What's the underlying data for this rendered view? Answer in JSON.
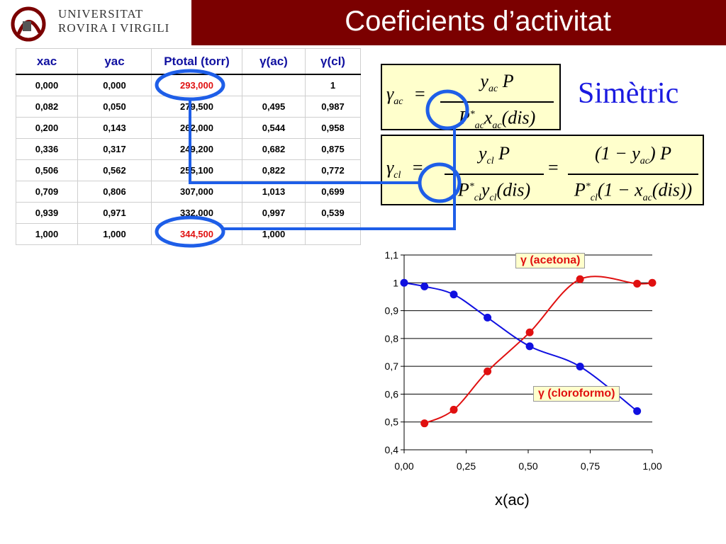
{
  "header": {
    "title": "Coeficients d’activitat",
    "university_line1": "UNIVERSITAT",
    "university_line2": "ROVIRA I VIRGILI"
  },
  "table": {
    "headers": [
      "xac",
      "yac",
      "Ptotal (torr)",
      "γ(ac)",
      "γ(cl)"
    ],
    "rows": [
      [
        "0,000",
        "0,000",
        "293,000",
        "",
        "1"
      ],
      [
        "0,082",
        "0,050",
        "279,500",
        "0,495",
        "0,987"
      ],
      [
        "0,200",
        "0,143",
        "262,000",
        "0,544",
        "0,958"
      ],
      [
        "0,336",
        "0,317",
        "249,200",
        "0,682",
        "0,875"
      ],
      [
        "0,506",
        "0,562",
        "255,100",
        "0,822",
        "0,772"
      ],
      [
        "0,709",
        "0,806",
        "307,000",
        "1,013",
        "0,699"
      ],
      [
        "0,939",
        "0,971",
        "332,000",
        "0,997",
        "0,539"
      ],
      [
        "1,000",
        "1,000",
        "344,500",
        "1,000",
        ""
      ]
    ],
    "highlighted_cells": [
      "0.2",
      "7.2"
    ]
  },
  "formulas": {
    "f1_lhs": "γ",
    "f1_lhs_sub": "ac",
    "f1_num": "y",
    "f1_num_sub": "ac",
    "f1_num_tail": " P",
    "f1_den": "P",
    "f1_den_sup": "*",
    "f1_den_sub": "ac",
    "f1_den_tail": "x",
    "f1_den_tail_sub": "ac",
    "f1_den_end": "(dis)",
    "f2_lhs": "γ",
    "f2_lhs_sub": "cl",
    "f2_num1": "y",
    "f2_num1_sub": "cl",
    "f2_num1_tail": " P",
    "f2_den1": "P",
    "f2_den1_sup": "*",
    "f2_den1_sub": "cl",
    "f2_den1_tail": "y",
    "f2_den1_tail_sub": "cl",
    "f2_den1_end": "(dis)",
    "f2_num2": "(1 − y",
    "f2_num2_sub": "ac",
    "f2_num2_tail": ") P",
    "f2_den2": "P",
    "f2_den2_sup": "*",
    "f2_den2_sub": "cl",
    "f2_den2_tail": "(1 − x",
    "f2_den2_tail_sub": "ac",
    "f2_den2_end": "(dis))",
    "equals": "=",
    "symmetric_label": "Simètric"
  },
  "chart_data": {
    "type": "scatter",
    "xlabel": "x(ac)",
    "ylabel": "",
    "xlim": [
      0,
      1
    ],
    "ylim": [
      0.4,
      1.1
    ],
    "x_ticks": [
      "0,00",
      "0,25",
      "0,50",
      "0,75",
      "1,00"
    ],
    "y_ticks": [
      "0,4",
      "0,5",
      "0,6",
      "0,7",
      "0,8",
      "0,9",
      "1",
      "1,1"
    ],
    "grid": "horizontal",
    "series": [
      {
        "name": "γ (acetona)",
        "color": "#e01010",
        "x": [
          0.082,
          0.2,
          0.336,
          0.506,
          0.709,
          0.939,
          1.0
        ],
        "y": [
          0.495,
          0.544,
          0.682,
          0.822,
          1.013,
          0.997,
          1.0
        ]
      },
      {
        "name": "γ (cloroformo)",
        "color": "#1010e0",
        "x": [
          0.0,
          0.082,
          0.2,
          0.336,
          0.506,
          0.709,
          0.939
        ],
        "y": [
          1.0,
          0.987,
          0.958,
          0.875,
          0.772,
          0.699,
          0.539
        ]
      }
    ]
  },
  "colors": {
    "title_bar": "#7b0000",
    "header_text": "#1010a0",
    "highlight_red": "#e01010",
    "annotation_blue": "#1e5ee8",
    "formula_bg": "#ffffcc"
  }
}
